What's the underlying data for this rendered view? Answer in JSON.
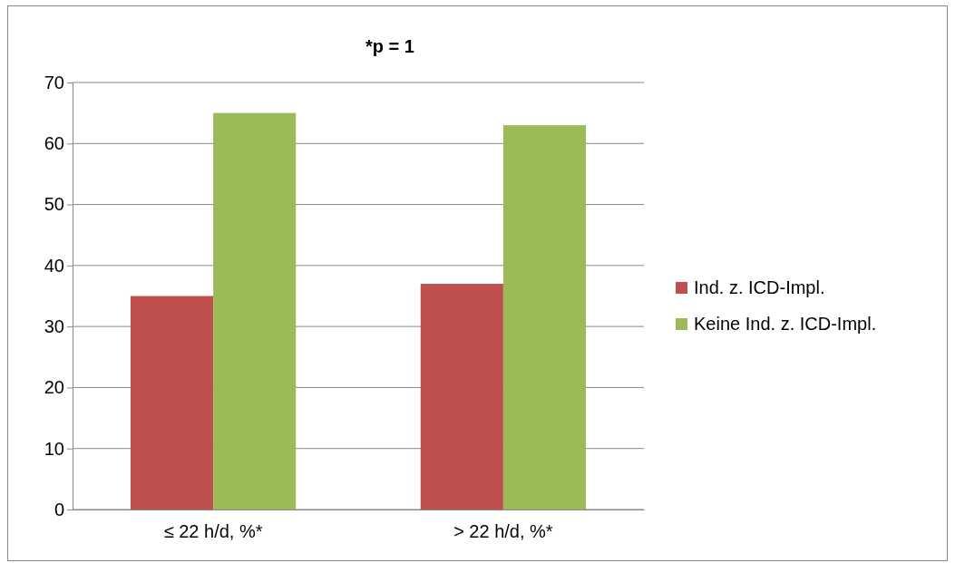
{
  "chart_data": {
    "type": "bar",
    "title": "*p = 1",
    "categories": [
      "≤ 22 h/d, %*",
      "> 22 h/d, %*"
    ],
    "series": [
      {
        "name": "Ind. z. ICD-Impl.",
        "color": "#c0504d",
        "values": [
          35,
          37
        ]
      },
      {
        "name": "Keine Ind. z. ICD-Impl.",
        "color": "#9bbb59",
        "values": [
          65,
          63
        ]
      }
    ],
    "ylim": [
      0,
      70
    ],
    "yticks": [
      0,
      10,
      20,
      30,
      40,
      50,
      60,
      70
    ],
    "grid": "y",
    "legend": "right"
  }
}
